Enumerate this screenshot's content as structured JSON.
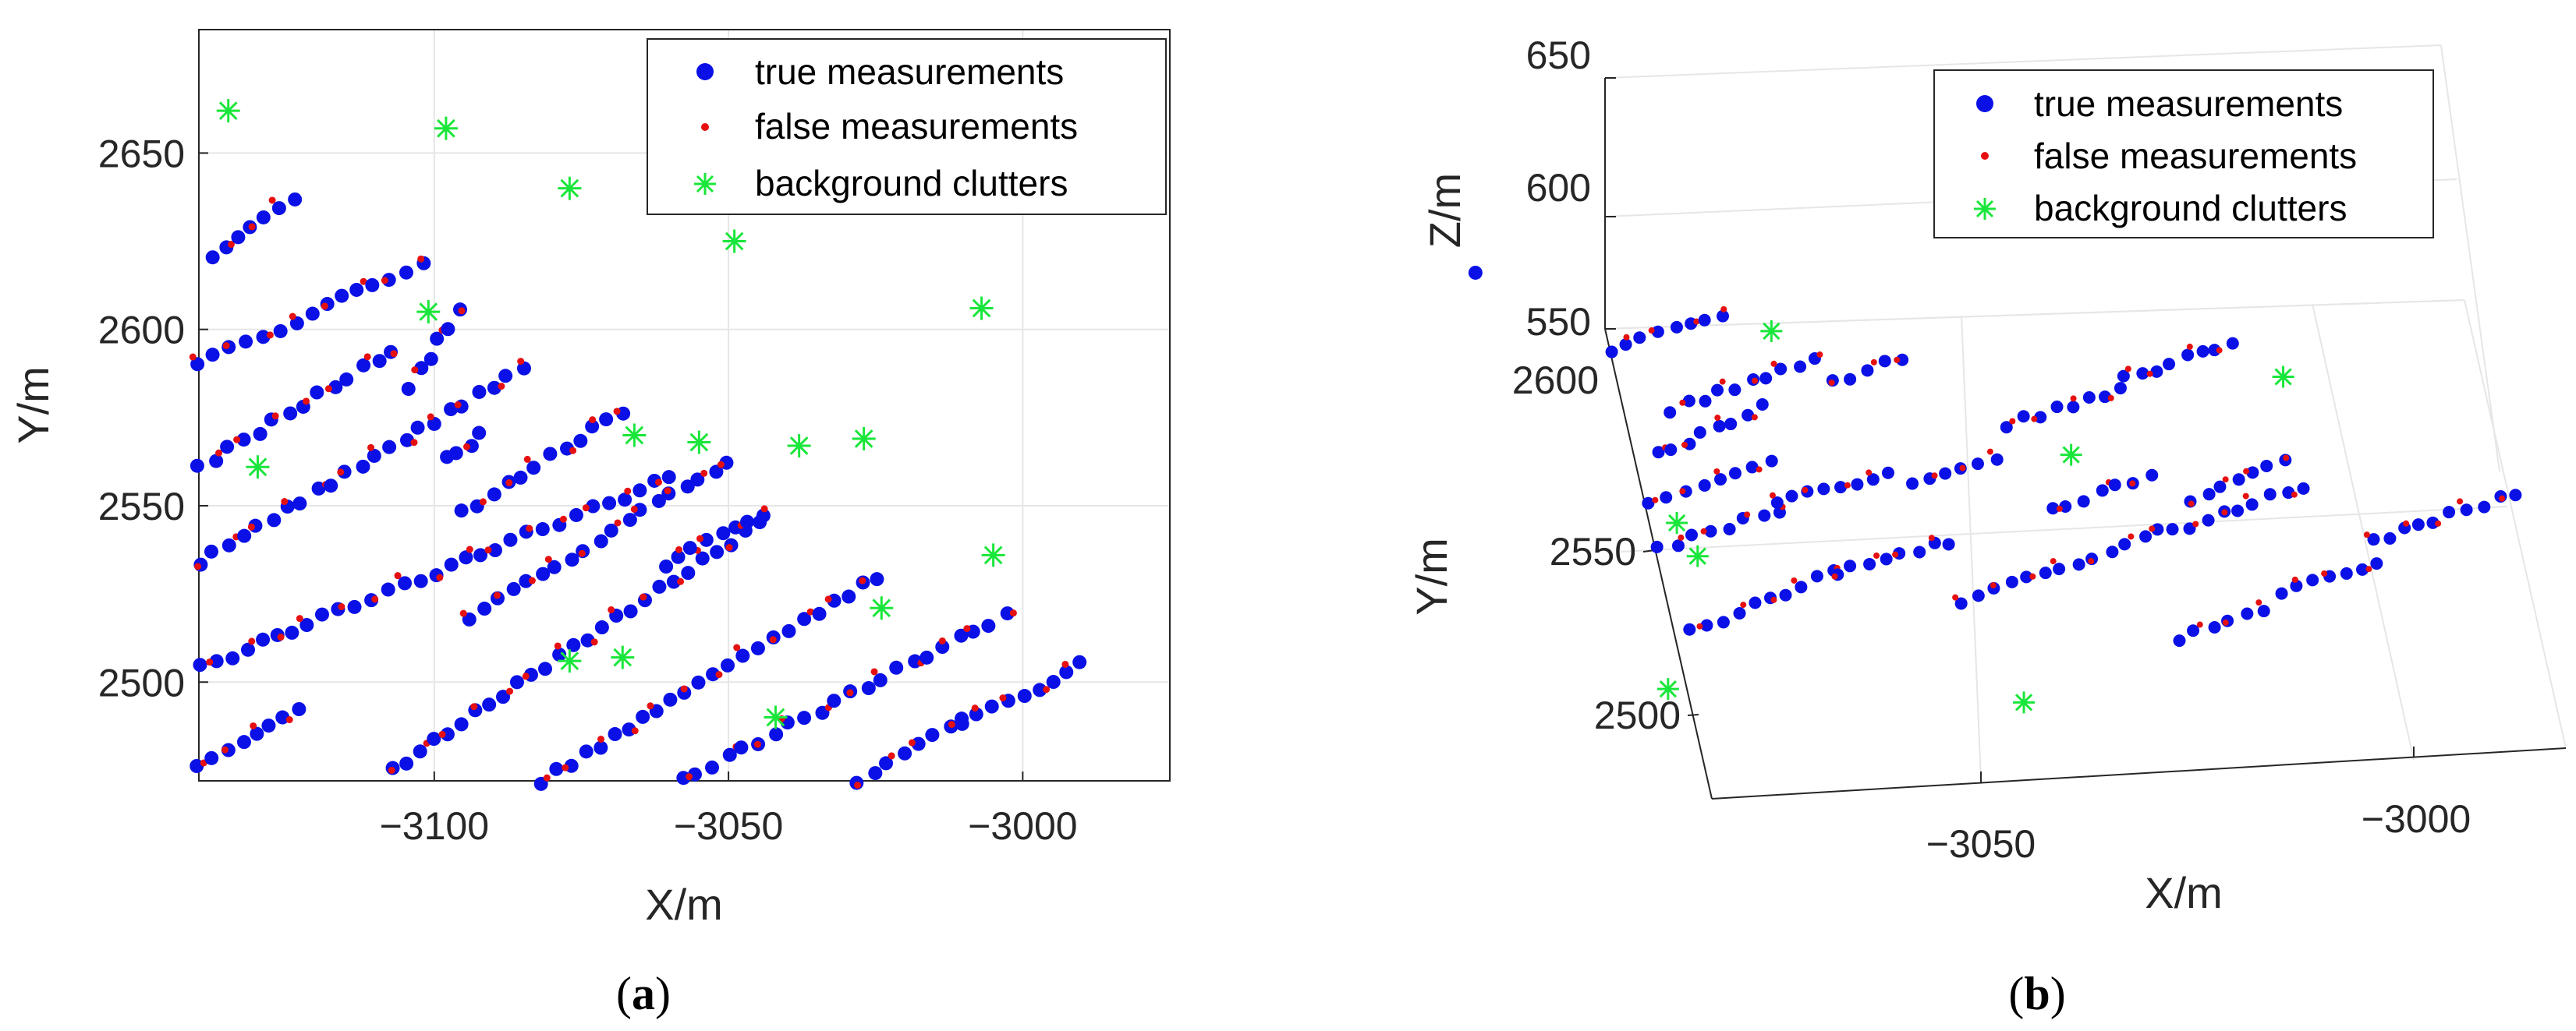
{
  "legend": {
    "true_label": "true measurements",
    "false_label": "false measurements",
    "clutter_label": "background clutters"
  },
  "colors": {
    "true": "#0a10e6",
    "false": "#e61010",
    "clutter": "#19e63a",
    "grid": "#e6e6e6",
    "axis": "#262626"
  },
  "chart_data": [
    {
      "type": "scatter",
      "panel": "(a)",
      "caption_letter": "a",
      "xlabel": "X/m",
      "ylabel": "Y/m",
      "xlim": [
        -3140,
        -2975
      ],
      "ylim": [
        2472,
        2685
      ],
      "xticks": [
        -3100,
        -3050,
        -3000
      ],
      "xtick_labels": [
        "−3100",
        "−3050",
        "−3000"
      ],
      "yticks": [
        2500,
        2550,
        2600,
        2650
      ],
      "ytick_labels": [
        "2500",
        "2550",
        "2600",
        "2650"
      ],
      "grid": true,
      "legend_position": "top-right",
      "tracks": [
        {
          "x0": -3140,
          "y0": 2477,
          "x1": -3123,
          "y1": 2492
        },
        {
          "x0": -3140,
          "y0": 2504,
          "x1": -3060,
          "y1": 2558
        },
        {
          "x0": -3140,
          "y0": 2534,
          "x1": -3085,
          "y1": 2589
        },
        {
          "x0": -3140,
          "y0": 2561,
          "x1": -3107,
          "y1": 2594
        },
        {
          "x0": -3140,
          "y0": 2590,
          "x1": -3102,
          "y1": 2619
        },
        {
          "x0": -3138,
          "y0": 2621,
          "x1": -3124,
          "y1": 2636
        },
        {
          "x0": -3098,
          "y0": 2563,
          "x1": -3092,
          "y1": 2570
        },
        {
          "x0": -3104,
          "y0": 2584,
          "x1": -3096,
          "y1": 2605
        },
        {
          "x0": -3107,
          "y0": 2475,
          "x1": -3045,
          "y1": 2545
        },
        {
          "x0": -3061,
          "y0": 2533,
          "x1": -3044,
          "y1": 2548
        },
        {
          "x0": -3094,
          "y0": 2518,
          "x1": -3050,
          "y1": 2563
        },
        {
          "x0": -3095,
          "y0": 2548,
          "x1": -3068,
          "y1": 2577
        },
        {
          "x0": -3082,
          "y0": 2472,
          "x1": -3025,
          "y1": 2530
        },
        {
          "x0": -3058,
          "y0": 2472,
          "x1": -3003,
          "y1": 2519
        },
        {
          "x0": -3028,
          "y0": 2472,
          "x1": -3010,
          "y1": 2489
        },
        {
          "x0": -3010,
          "y0": 2488,
          "x1": -2990,
          "y1": 2505
        }
      ],
      "clutter_points": [
        {
          "x": -3135,
          "y": 2662
        },
        {
          "x": -3098,
          "y": 2657
        },
        {
          "x": -3077,
          "y": 2640
        },
        {
          "x": -3049,
          "y": 2625
        },
        {
          "x": -3101,
          "y": 2605
        },
        {
          "x": -3007,
          "y": 2606
        },
        {
          "x": -3130,
          "y": 2561
        },
        {
          "x": -3066,
          "y": 2570
        },
        {
          "x": -3055,
          "y": 2568
        },
        {
          "x": -3038,
          "y": 2567
        },
        {
          "x": -3027,
          "y": 2569
        },
        {
          "x": -3005,
          "y": 2536
        },
        {
          "x": -3024,
          "y": 2521
        },
        {
          "x": -3068,
          "y": 2507
        },
        {
          "x": -3077,
          "y": 2506
        },
        {
          "x": -3042,
          "y": 2490
        }
      ]
    },
    {
      "type": "scatter",
      "panel": "(b)",
      "caption_letter": "b",
      "xlabel": "X/m",
      "ylabel": "Y/m",
      "zlabel": "Z/m",
      "view": "3d",
      "xlim": [
        -3085,
        -2975
      ],
      "ylim": [
        2480,
        2615
      ],
      "zlim": [
        550,
        650
      ],
      "xticks": [
        -3050,
        -3000
      ],
      "xtick_labels": [
        "−3050",
        "−3000"
      ],
      "yticks": [
        2500,
        2550,
        2600
      ],
      "ytick_labels": [
        "2500",
        "2550",
        "2600"
      ],
      "zticks": [
        550,
        600,
        650
      ],
      "ztick_labels": [
        "550",
        "600",
        "650"
      ],
      "grid": true,
      "legend_position": "top-right",
      "tracks": [
        {
          "x0": -3085,
          "y0": 2563,
          "x1": -3068,
          "y1": 2572
        },
        {
          "x0": -3083,
          "y0": 2524,
          "x1": -3062,
          "y1": 2539
        },
        {
          "x0": -3062,
          "y0": 2539,
          "x1": -3046,
          "y1": 2546
        },
        {
          "x0": -3085,
          "y0": 2549,
          "x1": -3068,
          "y1": 2558
        },
        {
          "x0": -3068,
          "y0": 2560,
          "x1": -3053,
          "y1": 2567
        },
        {
          "x0": -3050,
          "y0": 2564,
          "x1": -3038,
          "y1": 2568
        },
        {
          "x0": -3083,
          "y0": 2576,
          "x1": -3068,
          "y1": 2588
        },
        {
          "x0": -3080,
          "y0": 2589,
          "x1": -3060,
          "y1": 2601
        },
        {
          "x0": -3058,
          "y0": 2594,
          "x1": -3048,
          "y1": 2600
        },
        {
          "x0": -3087,
          "y0": 2607,
          "x1": -3071,
          "y1": 2616
        },
        {
          "x0": -3046,
          "y0": 2528,
          "x1": -3018,
          "y1": 2545
        },
        {
          "x0": -3016,
          "y0": 2545,
          "x1": -2998,
          "y1": 2556
        },
        {
          "x0": -3036,
          "y0": 2579,
          "x1": -3020,
          "y1": 2587
        },
        {
          "x0": -3032,
          "y0": 2553,
          "x1": -3018,
          "y1": 2562
        },
        {
          "x0": -3013,
          "y0": 2554,
          "x1": -3000,
          "y1": 2563
        },
        {
          "x0": -3003,
          "y0": 2525,
          "x1": -2990,
          "y1": 2533
        },
        {
          "x0": -2990,
          "y0": 2539,
          "x1": -2970,
          "y1": 2550
        },
        {
          "x0": -3018,
          "y0": 2514,
          "x1": -3006,
          "y1": 2521
        },
        {
          "x0": -3019,
          "y0": 2590,
          "x1": -3004,
          "y1": 2599
        }
      ],
      "clutter_points": [
        {
          "x": -3065,
          "y": 2610
        },
        {
          "x": -2998,
          "y": 2588
        },
        {
          "x": -3028,
          "y": 2569
        },
        {
          "x": -3082,
          "y": 2556
        },
        {
          "x": -3080,
          "y": 2546
        },
        {
          "x": -3087,
          "y": 2508
        },
        {
          "x": -3040,
          "y": 2498
        }
      ],
      "outlier_point": {
        "x": -3103,
        "y": 2632
      }
    }
  ]
}
